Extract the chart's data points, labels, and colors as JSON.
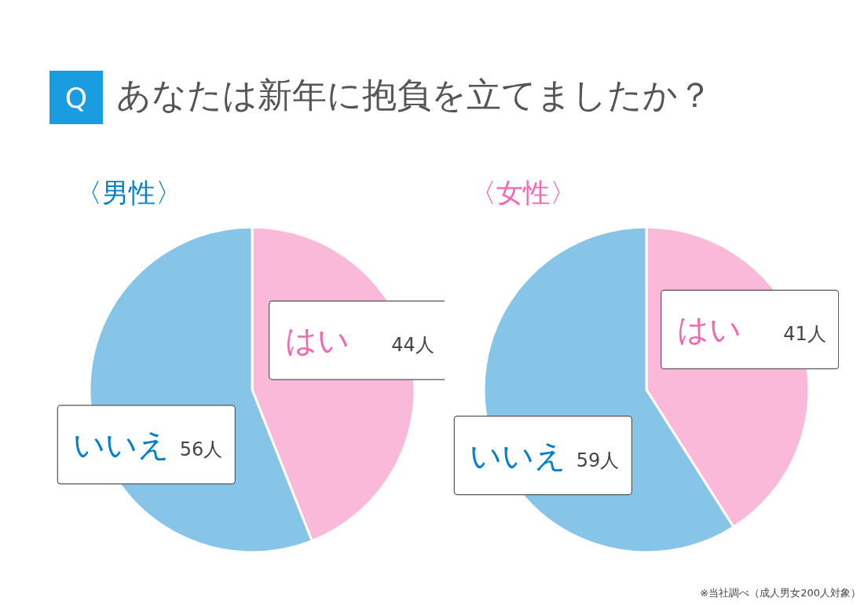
{
  "chart_data": [
    {
      "type": "pie",
      "title": "〈男性〉",
      "annotations": [
        "Q",
        "あなたは新年に抱負を立てましたか？"
      ],
      "categories": [
        "はい",
        "いいえ"
      ],
      "values": [
        44,
        56
      ],
      "colors": [
        "#fbb9da",
        "#86c5e8"
      ],
      "value_labels": [
        "44人",
        "56人"
      ]
    },
    {
      "type": "pie",
      "title": "〈女性〉",
      "annotations": [
        "※当社調べ（成人男女200人対象）"
      ],
      "categories": [
        "はい",
        "いいえ"
      ],
      "values": [
        41,
        59
      ],
      "colors": [
        "#fbb9da",
        "#86c5e8"
      ],
      "value_labels": [
        "41人",
        "59人"
      ]
    }
  ]
}
